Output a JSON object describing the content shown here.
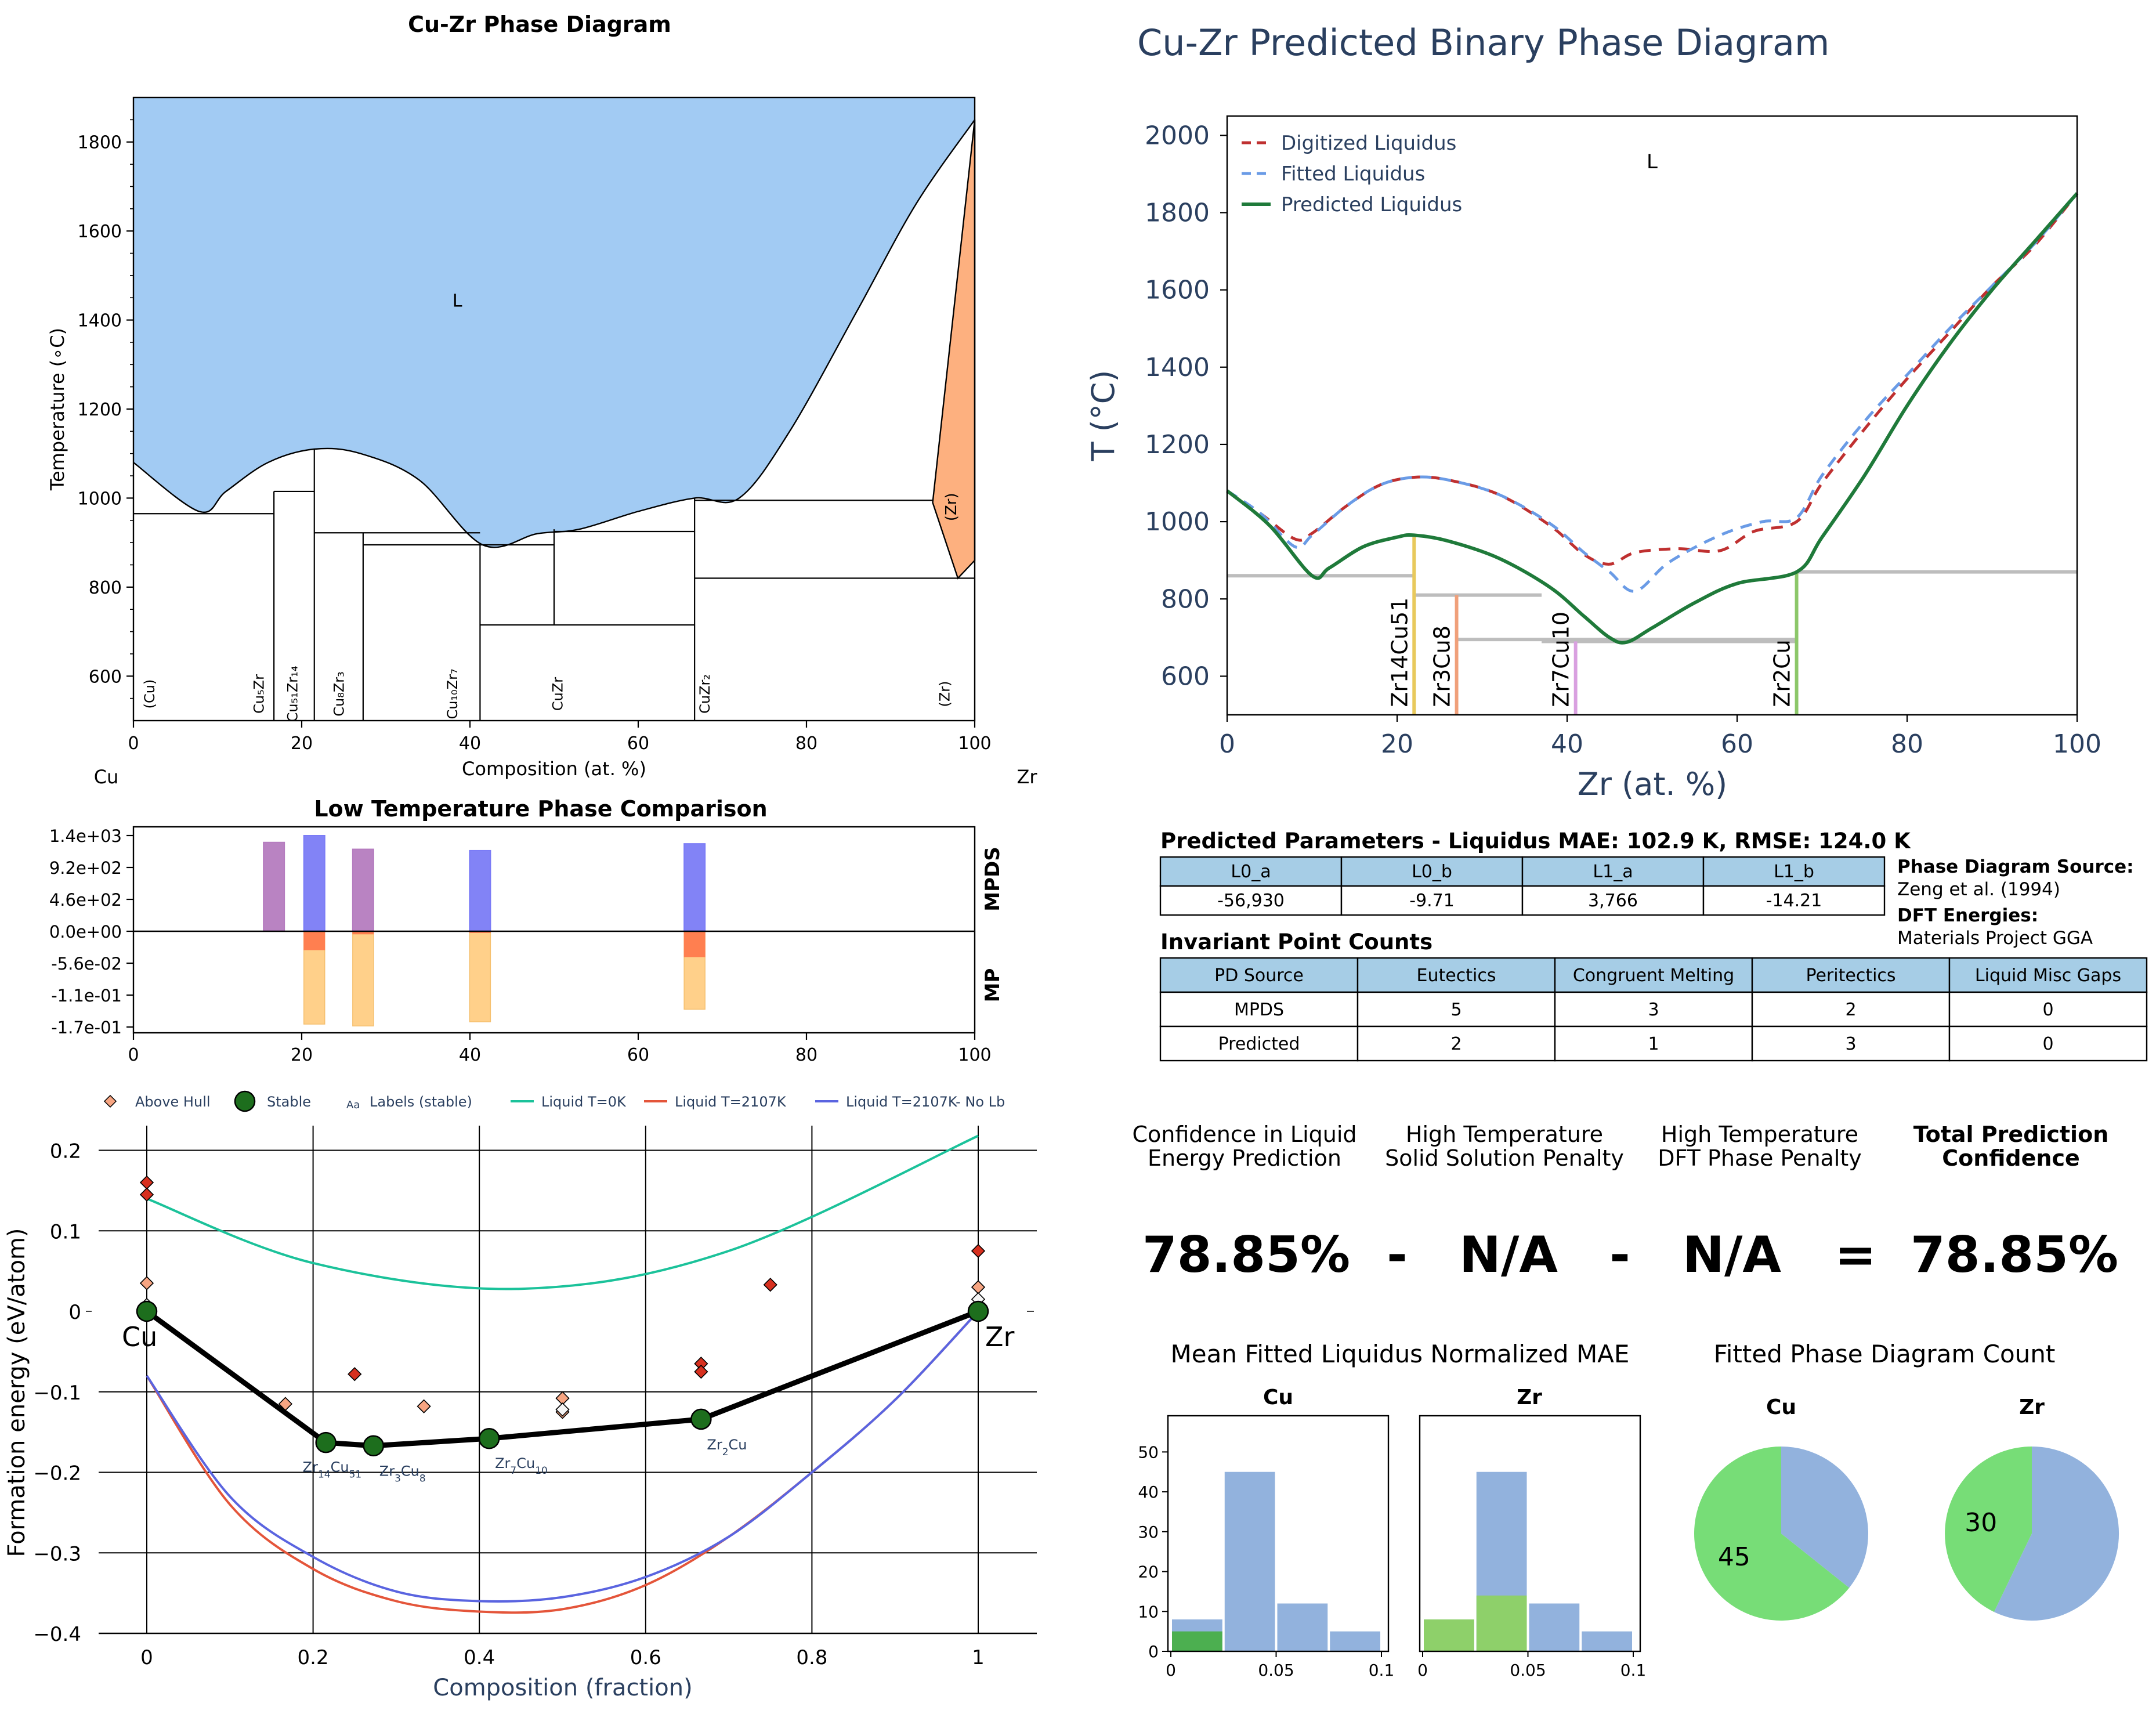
{
  "colors": {
    "liquid_region": "#a2cbf3",
    "zr_region": "#fdb07f",
    "mpds_purple": "#b57cbf",
    "mpds_blue": "#7b7cf6",
    "mp_red": "#ff7f50",
    "mp_orange": "#ffd08a",
    "digitized": "#bf3030",
    "fitted": "#6a9be6",
    "predicted": "#1f7a3a",
    "hull_green": "#1d6e1d",
    "liquid_0K": "#1bc29a",
    "liquid_2107": "#e4553a",
    "liquid_nolb": "#5a64e0",
    "pie_green": "#77dd77",
    "pie_blue": "#92b2dd",
    "hist_blue": "#92b2dd",
    "hist_green": "#4caf50",
    "hist_lightgreen": "#8ed06a",
    "table_header": "#a6cde6",
    "plotly_text": "#2a3f5f"
  },
  "chart_data": [
    {
      "id": "phase_diagram",
      "type": "area",
      "title": "Cu-Zr Phase Diagram",
      "xlabel": "Composition (at. %)",
      "ylabel": "Temperature (∘C)",
      "xlim": [
        0,
        100
      ],
      "ylim": [
        500,
        1900
      ],
      "xticks": [
        "0",
        "20",
        "40",
        "60",
        "80",
        "100"
      ],
      "yticks": [
        "600",
        "800",
        "1000",
        "1200",
        "1400",
        "1600",
        "1800"
      ],
      "endpoint_labels": [
        "Cu",
        "Zr"
      ],
      "liquid_label": "L",
      "liquidus": [
        [
          0,
          1080
        ],
        [
          7.8,
          970
        ],
        [
          11,
          1015
        ],
        [
          16,
          1080
        ],
        [
          21.5,
          1110
        ],
        [
          27,
          1100
        ],
        [
          34,
          1040
        ],
        [
          41.5,
          895
        ],
        [
          48,
          920
        ],
        [
          53,
          930
        ],
        [
          60,
          970
        ],
        [
          66.7,
          1000
        ],
        [
          72,
          1000
        ],
        [
          78,
          1150
        ],
        [
          86,
          1420
        ],
        [
          93,
          1660
        ],
        [
          100,
          1850
        ]
      ],
      "zr_solidus": [
        [
          100,
          1850
        ],
        [
          100,
          860
        ],
        [
          98,
          820
        ],
        [
          95,
          990
        ]
      ],
      "zr_label": "(Zr)",
      "phase_lines": [
        {
          "label": "(Cu)",
          "x": 2.5
        },
        {
          "label": "Cu₅Zr",
          "x": 15.5
        },
        {
          "label": "Cu₅₁Zr₁₄",
          "x": 19.5
        },
        {
          "label": "Cu₈Zr₃",
          "x": 25
        },
        {
          "label": "Cu₁₀Zr₇",
          "x": 38.5
        },
        {
          "label": "CuZr",
          "x": 51
        },
        {
          "label": "CuZr₂",
          "x": 68.5
        },
        {
          "label": "(Zr)",
          "x": 97
        }
      ],
      "horizontals": [
        [
          0,
          16.7,
          965
        ],
        [
          16.7,
          21.5,
          1015
        ],
        [
          21.5,
          27.3,
          922
        ],
        [
          27.3,
          41.2,
          922
        ],
        [
          27.3,
          41.2,
          895
        ],
        [
          41.2,
          50,
          895
        ],
        [
          41.2,
          50,
          715
        ],
        [
          50,
          66.7,
          925
        ],
        [
          50,
          66.7,
          715
        ],
        [
          66.7,
          95,
          995
        ],
        [
          66.7,
          100,
          820
        ]
      ],
      "verticals": [
        [
          16.7,
          500,
          1015
        ],
        [
          21.5,
          500,
          1110
        ],
        [
          27.3,
          500,
          922
        ],
        [
          41.2,
          500,
          895
        ],
        [
          50,
          715,
          930
        ],
        [
          66.7,
          500,
          1000
        ]
      ]
    },
    {
      "id": "low_temp",
      "type": "bar",
      "title": "Low Temperature Phase Comparison",
      "xlim": [
        0,
        100
      ],
      "xticks": [
        "0",
        "20",
        "40",
        "60",
        "80",
        "100"
      ],
      "yticks": [
        "1.4e+03",
        "9.2e+02",
        "4.6e+02",
        "0.0e+00",
        "-5.6e-02",
        "-1.1e-01",
        "-1.7e-01"
      ],
      "side_labels": [
        "MPDS",
        "MP"
      ],
      "mpds_bars": [
        {
          "x": 16.7,
          "value": 1300,
          "color": "purple"
        },
        {
          "x": 21.5,
          "value": 1400,
          "color": "blue"
        },
        {
          "x": 27.3,
          "value": 1200,
          "color": "purple"
        },
        {
          "x": 41.2,
          "value": 1180,
          "color": "blue"
        },
        {
          "x": 66.7,
          "value": 1280,
          "color": "blue"
        }
      ],
      "mp_bars": [
        {
          "x": 21.5,
          "red": -0.04,
          "total": -0.2
        },
        {
          "x": 27.3,
          "red": -0.006,
          "total": -0.204
        },
        {
          "x": 41.2,
          "red": -0.003,
          "total": -0.195
        },
        {
          "x": 66.7,
          "red": -0.055,
          "total": -0.168
        }
      ]
    },
    {
      "id": "formation_energy",
      "type": "scatter",
      "xlabel": "Composition (fraction)",
      "ylabel": "Formation energy (eV/atom)",
      "xlim": [
        -0.04,
        1.07
      ],
      "ylim": [
        -0.4,
        0.25
      ],
      "xticks": [
        "0",
        "0.2",
        "0.4",
        "0.6",
        "0.8",
        "1"
      ],
      "yticks": [
        "−0.4",
        "−0.3",
        "−0.2",
        "−0.1",
        "0",
        "0.1",
        "0.2"
      ],
      "legend": [
        "Above Hull",
        "Stable",
        "Labels (stable)",
        "Liquid T=0K",
        "Liquid T=2107K",
        "Liquid T=2107K- No Lb"
      ],
      "legend_marker_text": "Aa",
      "end_labels": [
        "Cu",
        "Zr"
      ],
      "stable": [
        {
          "x": 0,
          "y": 0,
          "label": ""
        },
        {
          "x": 0.2154,
          "y": -0.163,
          "label": "Zr14Cu51"
        },
        {
          "x": 0.2727,
          "y": -0.167,
          "label": "Zr3Cu8"
        },
        {
          "x": 0.4118,
          "y": -0.158,
          "label": "Zr7Cu10"
        },
        {
          "x": 0.6667,
          "y": -0.134,
          "label": "Zr2Cu"
        },
        {
          "x": 1,
          "y": 0,
          "label": ""
        }
      ],
      "above_hull_red": [
        [
          0,
          0.16
        ],
        [
          0,
          0.145
        ],
        [
          0.25,
          -0.078
        ],
        [
          0.6667,
          -0.065
        ],
        [
          0.6667,
          -0.075
        ],
        [
          0.75,
          0.033
        ],
        [
          1,
          0.075
        ]
      ],
      "above_hull_orange": [
        [
          0,
          0.035
        ],
        [
          0.1667,
          -0.115
        ],
        [
          0.3333,
          -0.118
        ],
        [
          0.5,
          -0.108
        ],
        [
          0.5,
          -0.125
        ],
        [
          1,
          0.03
        ]
      ],
      "above_hull_white": [
        [
          0,
          0.008
        ],
        [
          0.5,
          -0.122
        ],
        [
          1,
          0.015
        ]
      ],
      "liquid_0K": [
        [
          0,
          0.14
        ],
        [
          0.2,
          0.06
        ],
        [
          0.45,
          0.028
        ],
        [
          0.7,
          0.075
        ],
        [
          1,
          0.218
        ]
      ],
      "liquid_2107": [
        [
          0,
          -0.08
        ],
        [
          0.1,
          -0.24
        ],
        [
          0.2,
          -0.32
        ],
        [
          0.3,
          -0.36
        ],
        [
          0.4,
          -0.373
        ],
        [
          0.5,
          -0.37
        ],
        [
          0.6,
          -0.34
        ],
        [
          0.7,
          -0.28
        ],
        [
          0.8,
          -0.2
        ],
        [
          0.9,
          -0.11
        ],
        [
          1,
          0
        ]
      ],
      "liquid_nolb": [
        [
          0,
          -0.08
        ],
        [
          0.1,
          -0.23
        ],
        [
          0.2,
          -0.305
        ],
        [
          0.3,
          -0.348
        ],
        [
          0.4,
          -0.36
        ],
        [
          0.5,
          -0.355
        ],
        [
          0.6,
          -0.33
        ],
        [
          0.7,
          -0.28
        ],
        [
          0.8,
          -0.2
        ],
        [
          0.9,
          -0.11
        ],
        [
          1,
          0
        ]
      ]
    },
    {
      "id": "predicted_pd",
      "type": "line",
      "title": "Cu-Zr Predicted Binary Phase Diagram",
      "xlabel": "Zr (at. %)",
      "ylabel": "T (°C)",
      "xlim": [
        0,
        100
      ],
      "ylim": [
        500,
        2050
      ],
      "xticks": [
        "0",
        "20",
        "40",
        "60",
        "80",
        "100"
      ],
      "yticks": [
        "600",
        "800",
        "1000",
        "1200",
        "1400",
        "1600",
        "1800",
        "2000"
      ],
      "liquid_label": "L",
      "series": [
        {
          "name": "Digitized Liquidus",
          "points": [
            [
              0,
              1080
            ],
            [
              4,
              1020
            ],
            [
              8,
              955
            ],
            [
              10,
              970
            ],
            [
              14,
              1040
            ],
            [
              18,
              1095
            ],
            [
              22,
              1115
            ],
            [
              26,
              1108
            ],
            [
              32,
              1070
            ],
            [
              38,
              990
            ],
            [
              42,
              915
            ],
            [
              45,
              890
            ],
            [
              48,
              920
            ],
            [
              53,
              930
            ],
            [
              58,
              925
            ],
            [
              62,
              975
            ],
            [
              67,
              1000
            ],
            [
              70,
              1100
            ],
            [
              75,
              1240
            ],
            [
              80,
              1370
            ],
            [
              85,
              1490
            ],
            [
              90,
              1610
            ],
            [
              95,
              1715
            ],
            [
              100,
              1850
            ]
          ]
        },
        {
          "name": "Fitted Liquidus",
          "points": [
            [
              0,
              1080
            ],
            [
              4,
              1020
            ],
            [
              8,
              935
            ],
            [
              10,
              965
            ],
            [
              14,
              1040
            ],
            [
              18,
              1095
            ],
            [
              22,
              1115
            ],
            [
              26,
              1108
            ],
            [
              32,
              1070
            ],
            [
              38,
              995
            ],
            [
              42,
              920
            ],
            [
              45,
              870
            ],
            [
              48,
              820
            ],
            [
              52,
              895
            ],
            [
              58,
              965
            ],
            [
              63,
              1000
            ],
            [
              67,
              1010
            ],
            [
              70,
              1120
            ],
            [
              75,
              1260
            ],
            [
              80,
              1380
            ],
            [
              85,
              1500
            ],
            [
              90,
              1610
            ],
            [
              95,
              1720
            ],
            [
              100,
              1850
            ]
          ]
        },
        {
          "name": "Predicted Liquidus",
          "points": [
            [
              0,
              1080
            ],
            [
              5,
              990
            ],
            [
              10,
              860
            ],
            [
              12,
              880
            ],
            [
              16,
              935
            ],
            [
              20,
              960
            ],
            [
              22,
              965
            ],
            [
              26,
              950
            ],
            [
              32,
              905
            ],
            [
              38,
              830
            ],
            [
              42,
              755
            ],
            [
              45,
              700
            ],
            [
              47,
              688
            ],
            [
              50,
              725
            ],
            [
              55,
              790
            ],
            [
              60,
              840
            ],
            [
              67,
              870
            ],
            [
              70,
              960
            ],
            [
              75,
              1120
            ],
            [
              80,
              1300
            ],
            [
              85,
              1460
            ],
            [
              90,
              1600
            ],
            [
              95,
              1725
            ],
            [
              100,
              1850
            ]
          ]
        }
      ],
      "grey_lines": [
        [
          0,
          22,
          860
        ],
        [
          22,
          37,
          810
        ],
        [
          27,
          67,
          695
        ],
        [
          37,
          67,
          690
        ],
        [
          67,
          100,
          870
        ]
      ],
      "compound_lines": [
        {
          "label": "Zr14Cu51",
          "x": 22,
          "top": 960,
          "color": "#e8c95c"
        },
        {
          "label": "Zr3Cu8",
          "x": 27,
          "top": 810,
          "color": "#f0a07a"
        },
        {
          "label": "Zr7Cu10",
          "x": 41,
          "top": 690,
          "color": "#d9a0e0"
        },
        {
          "label": "Zr2Cu",
          "x": 67,
          "top": 870,
          "color": "#8cc76a"
        }
      ]
    },
    {
      "id": "mae_hist",
      "type": "bar",
      "title": "Mean Fitted Liquidus Normalized MAE",
      "panels": [
        {
          "title": "Cu",
          "bins": [
            0,
            0.025,
            0.05,
            0.075,
            0.1
          ],
          "blue": [
            8,
            45,
            12,
            5
          ],
          "green": [
            5,
            0,
            0,
            0
          ]
        },
        {
          "title": "Zr",
          "bins": [
            0,
            0.025,
            0.05,
            0.075,
            0.1
          ],
          "blue": [
            8,
            45,
            12,
            5
          ],
          "green": [
            8,
            14,
            0,
            0
          ]
        }
      ],
      "yticks": [
        "0",
        "10",
        "20",
        "30",
        "40",
        "50"
      ],
      "xticks": [
        "0",
        "0.05",
        "0.1"
      ]
    },
    {
      "id": "pd_count",
      "type": "pie",
      "title": "Fitted Phase Diagram Count",
      "panels": [
        {
          "title": "Cu",
          "green": 45,
          "blue": 25,
          "label": "45"
        },
        {
          "title": "Zr",
          "green": 30,
          "blue": 40,
          "label": "30"
        }
      ]
    }
  ],
  "params_table": {
    "title": "Predicted Parameters - Liquidus MAE: 102.9 K, RMSE: 124.0 K",
    "headers": [
      "L0_a",
      "L0_b",
      "L1_a",
      "L1_b"
    ],
    "values": [
      "-56,930",
      "-9.71",
      "3,766",
      "-14.21"
    ]
  },
  "source_info": {
    "pd_source_label": "Phase Diagram Source:",
    "pd_source_value": "Zeng et al. (1994)",
    "dft_label": "DFT Energies:",
    "dft_value": "Materials Project GGA"
  },
  "invariant_table": {
    "title": "Invariant Point Counts",
    "headers": [
      "PD Source",
      "Eutectics",
      "Congruent Melting",
      "Peritectics",
      "Liquid Misc Gaps"
    ],
    "rows": [
      [
        "MPDS",
        "5",
        "3",
        "2",
        "0"
      ],
      [
        "Predicted",
        "2",
        "1",
        "3",
        "0"
      ]
    ]
  },
  "confidence": {
    "col1": [
      "Confidence in Liquid",
      "Energy Prediction"
    ],
    "col2": [
      "High Temperature",
      "Solid Solution Penalty"
    ],
    "col3": [
      "High Temperature",
      "DFT Phase Penalty"
    ],
    "col4": [
      "Total Prediction",
      "Confidence"
    ],
    "value1": "78.85%",
    "op1": "-",
    "value2": "N/A",
    "op2": "-",
    "value3": "N/A",
    "op3": "=",
    "value4": "78.85%"
  }
}
